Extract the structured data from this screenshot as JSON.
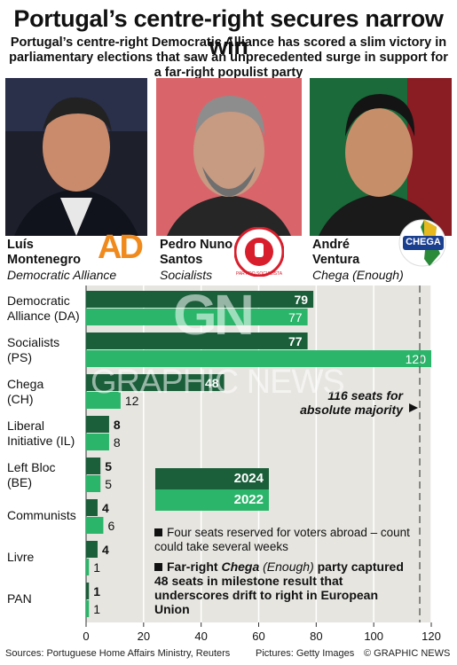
{
  "title": "Portugal’s centre-right secures narrow win",
  "subtitle": "Portugal’s centre-right Democratic Alliance has scored a slim victory in parliamentary elections that saw an unprecedented surge in support for a far-right populist party",
  "people": [
    {
      "name_line1": "Luís",
      "name_line2": "Montenegro",
      "party": "Democratic Alliance",
      "logo_text": "AD"
    },
    {
      "name_line1": "Pedro Nuno",
      "name_line2": "Santos",
      "party": "Socialists",
      "logo_text": "PARTIDO SOCIALISTA"
    },
    {
      "name_line1": "André",
      "name_line2": "Ventura",
      "party": "Chega (Enough)",
      "logo_text": "CHEGA"
    }
  ],
  "chart_data": {
    "type": "bar",
    "orientation": "horizontal",
    "categories": [
      {
        "line1": "Democratic",
        "line2": "Alliance (DA)"
      },
      {
        "line1": "Socialists",
        "line2": "(PS)"
      },
      {
        "line1": "Chega",
        "line2": "(CH)"
      },
      {
        "line1": "Liberal",
        "line2": "Initiative (IL)"
      },
      {
        "line1": "Left Bloc",
        "line2": "(BE)"
      },
      {
        "line1": "Communists",
        "line2": ""
      },
      {
        "line1": "Livre",
        "line2": ""
      },
      {
        "line1": "PAN",
        "line2": ""
      }
    ],
    "series": [
      {
        "name": "2024",
        "values": [
          79,
          77,
          48,
          8,
          5,
          4,
          4,
          1
        ],
        "color": "#1a5e3a"
      },
      {
        "name": "2022",
        "values": [
          77,
          120,
          12,
          8,
          5,
          6,
          1,
          1
        ],
        "color": "#2ab56a"
      }
    ],
    "xlim": [
      0,
      120
    ],
    "xticks": [
      0,
      20,
      40,
      60,
      80,
      100,
      120
    ],
    "majority_line": 116,
    "majority_label_line1": "116 seats for",
    "majority_label_line2": "absolute majority",
    "legend_placement": "center-right"
  },
  "notes": {
    "note1": "Four seats reserved for voters abroad – count could take several weeks",
    "note2_pre": "Far-right ",
    "note2_em": "Chega",
    "note2_mid": " (Enough)",
    "note2_post": " party captured 48 seats in milestone result that underscores drift to right in European Union"
  },
  "footer": {
    "sources": "Sources: Portuguese Home Affairs Ministry, Reuters",
    "pictures": "Pictures: Getty Images",
    "credit": "© GRAPHIC NEWS"
  },
  "watermark": {
    "mark": "GN",
    "text": "GRAPHIC NEWS"
  },
  "colors": {
    "dark_green": "#1a5e3a",
    "light_green": "#2ab56a",
    "panel": "#e6e5e0",
    "ad_orange": "#f08a1c",
    "ps_red": "#d81e2c",
    "chega_blue": "#1b3f8f"
  }
}
